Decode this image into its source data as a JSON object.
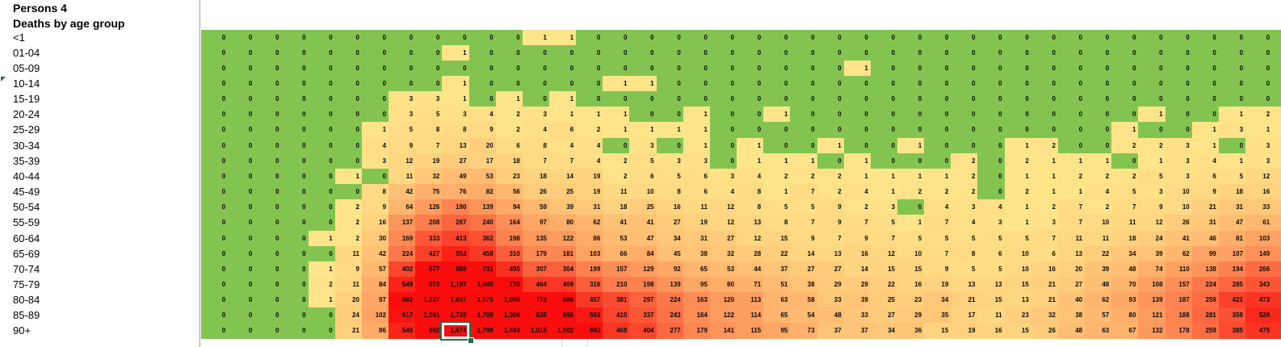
{
  "header": {
    "title": "Persons 4",
    "subtitle": "Deaths by age group"
  },
  "heatmap": {
    "type": "heatmap",
    "row_labels": [
      "<1",
      "01-04",
      "05-09",
      "10-14",
      "15-19",
      "20-24",
      "25-29",
      "30-34",
      "35-39",
      "40-44",
      "45-49",
      "50-54",
      "55-59",
      "60-64",
      "65-69",
      "70-74",
      "75-79",
      "80-84",
      "85-89",
      "90+"
    ],
    "rows": [
      [
        0,
        0,
        0,
        0,
        0,
        0,
        0,
        0,
        0,
        0,
        0,
        0,
        1,
        1,
        0,
        0,
        0,
        0,
        0,
        0,
        0,
        0,
        0,
        0,
        0,
        0,
        0,
        0,
        0,
        0,
        0,
        0,
        0,
        0,
        0,
        0,
        0,
        0,
        0,
        0
      ],
      [
        0,
        0,
        0,
        0,
        0,
        0,
        0,
        0,
        0,
        1,
        0,
        0,
        0,
        0,
        0,
        0,
        0,
        0,
        0,
        0,
        0,
        0,
        0,
        0,
        0,
        0,
        0,
        0,
        0,
        0,
        0,
        0,
        0,
        0,
        0,
        0,
        0,
        0,
        0,
        0
      ],
      [
        0,
        0,
        0,
        0,
        0,
        0,
        0,
        0,
        0,
        0,
        0,
        0,
        0,
        0,
        0,
        0,
        0,
        0,
        0,
        0,
        0,
        0,
        0,
        0,
        1,
        0,
        0,
        0,
        0,
        0,
        0,
        0,
        0,
        0,
        0,
        0,
        0,
        0,
        0,
        0
      ],
      [
        0,
        0,
        0,
        0,
        0,
        0,
        0,
        0,
        0,
        1,
        0,
        0,
        0,
        0,
        0,
        1,
        1,
        0,
        0,
        0,
        0,
        0,
        0,
        0,
        0,
        0,
        0,
        0,
        0,
        0,
        0,
        0,
        0,
        0,
        0,
        0,
        0,
        0,
        0,
        0
      ],
      [
        0,
        0,
        0,
        0,
        0,
        0,
        0,
        3,
        3,
        1,
        0,
        1,
        0,
        1,
        0,
        0,
        0,
        0,
        0,
        0,
        0,
        0,
        0,
        0,
        0,
        0,
        0,
        0,
        0,
        0,
        0,
        0,
        0,
        0,
        0,
        0,
        0,
        0,
        0,
        0
      ],
      [
        0,
        0,
        0,
        0,
        0,
        0,
        0,
        3,
        5,
        3,
        4,
        2,
        3,
        1,
        1,
        1,
        0,
        0,
        1,
        0,
        0,
        1,
        0,
        0,
        0,
        0,
        0,
        0,
        0,
        0,
        0,
        0,
        0,
        0,
        0,
        1,
        0,
        0,
        1,
        2
      ],
      [
        0,
        0,
        0,
        0,
        0,
        0,
        1,
        5,
        8,
        8,
        9,
        2,
        4,
        6,
        2,
        1,
        1,
        1,
        1,
        0,
        0,
        0,
        0,
        0,
        0,
        0,
        0,
        0,
        0,
        0,
        0,
        0,
        0,
        0,
        1,
        0,
        0,
        1,
        3,
        1
      ],
      [
        0,
        0,
        0,
        0,
        0,
        0,
        4,
        9,
        7,
        13,
        20,
        6,
        8,
        4,
        4,
        0,
        3,
        0,
        1,
        0,
        1,
        0,
        0,
        1,
        0,
        0,
        1,
        0,
        0,
        0,
        1,
        2,
        0,
        0,
        2,
        2,
        3,
        1,
        0,
        3
      ],
      [
        0,
        0,
        0,
        0,
        0,
        0,
        3,
        12,
        19,
        27,
        17,
        18,
        7,
        7,
        4,
        2,
        5,
        3,
        3,
        0,
        1,
        1,
        1,
        0,
        1,
        0,
        0,
        0,
        2,
        0,
        2,
        1,
        1,
        1,
        0,
        1,
        3,
        4,
        1,
        3
      ],
      [
        0,
        0,
        0,
        0,
        0,
        1,
        0,
        11,
        32,
        49,
        53,
        23,
        18,
        14,
        19,
        2,
        6,
        5,
        6,
        3,
        4,
        2,
        2,
        2,
        1,
        1,
        1,
        1,
        2,
        0,
        1,
        1,
        2,
        2,
        2,
        5,
        3,
        6,
        5,
        12
      ],
      [
        0,
        0,
        0,
        0,
        0,
        0,
        8,
        42,
        75,
        76,
        82,
        56,
        26,
        25,
        19,
        11,
        10,
        8,
        6,
        4,
        8,
        1,
        7,
        2,
        4,
        1,
        2,
        2,
        2,
        0,
        2,
        1,
        1,
        4,
        5,
        3,
        10,
        9,
        18,
        16
      ],
      [
        0,
        0,
        0,
        0,
        0,
        2,
        9,
        64,
        126,
        190,
        139,
        94,
        59,
        39,
        31,
        18,
        25,
        16,
        11,
        12,
        8,
        5,
        5,
        9,
        2,
        3,
        0,
        4,
        3,
        4,
        1,
        2,
        7,
        2,
        7,
        9,
        10,
        21,
        31,
        33
      ],
      [
        0,
        0,
        0,
        0,
        0,
        2,
        16,
        137,
        208,
        287,
        240,
        164,
        97,
        80,
        62,
        41,
        41,
        27,
        19,
        12,
        13,
        8,
        7,
        9,
        7,
        5,
        1,
        7,
        4,
        3,
        1,
        3,
        7,
        10,
        11,
        12,
        26,
        31,
        47,
        61
      ],
      [
        0,
        0,
        0,
        0,
        1,
        2,
        30,
        169,
        333,
        413,
        362,
        198,
        135,
        122,
        86,
        53,
        47,
        34,
        31,
        27,
        12,
        15,
        9,
        7,
        9,
        7,
        5,
        5,
        5,
        5,
        5,
        7,
        11,
        11,
        18,
        24,
        41,
        46,
        81,
        103
      ],
      [
        0,
        0,
        0,
        0,
        0,
        11,
        42,
        224,
        427,
        553,
        458,
        310,
        179,
        181,
        103,
        66,
        84,
        45,
        38,
        32,
        28,
        22,
        14,
        13,
        16,
        12,
        10,
        7,
        8,
        6,
        10,
        6,
        13,
        22,
        34,
        39,
        62,
        99,
        107,
        149
      ],
      [
        0,
        0,
        0,
        0,
        1,
        9,
        57,
        402,
        677,
        889,
        731,
        495,
        307,
        304,
        199,
        157,
        129,
        92,
        65,
        53,
        44,
        37,
        27,
        27,
        14,
        15,
        15,
        9,
        5,
        5,
        10,
        16,
        20,
        39,
        48,
        74,
        110,
        138,
        194,
        266
      ],
      [
        0,
        0,
        0,
        0,
        2,
        11,
        84,
        549,
        973,
        1197,
        1040,
        770,
        464,
        469,
        316,
        210,
        198,
        139,
        95,
        80,
        71,
        51,
        38,
        29,
        29,
        22,
        16,
        19,
        13,
        13,
        15,
        21,
        27,
        48,
        70,
        108,
        157,
        224,
        285,
        343
      ],
      [
        0,
        0,
        0,
        0,
        1,
        20,
        97,
        682,
        1237,
        1637,
        1575,
        1096,
        772,
        686,
        457,
        381,
        297,
        224,
        163,
        120,
        113,
        63,
        58,
        33,
        39,
        25,
        23,
        34,
        21,
        15,
        13,
        21,
        40,
        62,
        93,
        139,
        187,
        259,
        421,
        473
      ],
      [
        0,
        0,
        0,
        0,
        0,
        24,
        102,
        617,
        1091,
        1739,
        1709,
        1306,
        835,
        868,
        593,
        410,
        337,
        243,
        164,
        122,
        114,
        65,
        54,
        48,
        33,
        27,
        29,
        35,
        17,
        11,
        23,
        32,
        38,
        57,
        80,
        121,
        188,
        281,
        358,
        526
      ],
      [
        0,
        0,
        0,
        0,
        0,
        21,
        86,
        546,
        992,
        1674,
        1798,
        1494,
        1015,
        1002,
        693,
        468,
        404,
        277,
        179,
        141,
        115,
        95,
        73,
        37,
        37,
        34,
        36,
        15,
        19,
        16,
        15,
        26,
        48,
        63,
        67,
        132,
        178,
        259,
        385,
        475
      ]
    ],
    "selection": {
      "row_label": "90+",
      "row_index": 19,
      "col_index": 9,
      "value_display": "1,674"
    },
    "flag_marker": {
      "row_label": "10-14",
      "row_index": 3
    },
    "colors": {
      "zero_green": "#83C451",
      "low_yellow": "#FFE98C",
      "high_red": "#FA0D0C",
      "selection_border": "#1E7145",
      "gridline": "#a3a3a3",
      "scale_max": 650,
      "scale_gamma": 0.625
    }
  }
}
